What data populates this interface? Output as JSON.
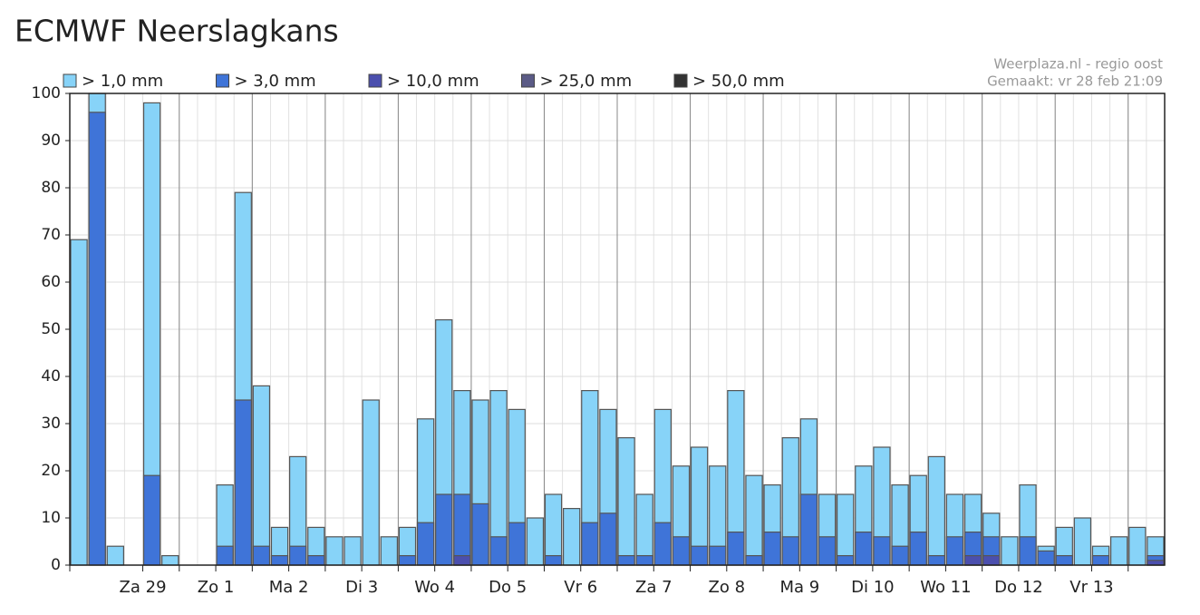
{
  "chart_data": {
    "type": "bar",
    "title": "ECMWF Neerslagkans",
    "credits": [
      "Weerplaza.nl - regio oost",
      "Gemaakt: vr 28 feb 21:09"
    ],
    "categories": [
      null,
      null,
      "Za 29",
      null,
      null,
      null,
      "Zo 1",
      null,
      null,
      null,
      "Ma 2",
      null,
      null,
      null,
      "Di 3",
      null,
      null,
      null,
      "Wo 4",
      null,
      null,
      null,
      "Do 5",
      null,
      null,
      null,
      "Vr 6",
      null,
      null,
      null,
      "Za 7",
      null,
      null,
      null,
      "Zo 8",
      null,
      null,
      null,
      "Ma 9",
      null,
      null,
      null,
      "Di 10",
      null,
      null,
      null,
      "Wo 11",
      null,
      null,
      null,
      "Do 12",
      null,
      null,
      null,
      "Vr 13",
      null,
      null,
      null,
      null,
      null
    ],
    "series": [
      {
        "name": "> 1,0 mm",
        "color": "#87d3f8",
        "values": [
          69,
          100,
          4,
          0,
          98,
          2,
          0,
          0,
          17,
          79,
          38,
          8,
          23,
          8,
          6,
          6,
          35,
          6,
          8,
          31,
          52,
          37,
          35,
          37,
          33,
          10,
          15,
          12,
          37,
          33,
          27,
          15,
          33,
          21,
          25,
          21,
          37,
          19,
          17,
          27,
          31,
          15,
          15,
          21,
          25,
          17,
          19,
          23,
          15,
          15,
          11,
          6,
          17,
          4,
          8,
          10,
          4,
          6,
          8,
          6
        ]
      },
      {
        "name": "> 3,0 mm",
        "color": "#3f74d8",
        "values": [
          0,
          96,
          0,
          0,
          19,
          0,
          0,
          0,
          4,
          35,
          4,
          2,
          4,
          2,
          0,
          0,
          0,
          0,
          2,
          9,
          15,
          15,
          13,
          6,
          9,
          0,
          2,
          0,
          9,
          11,
          2,
          2,
          9,
          6,
          4,
          4,
          7,
          2,
          7,
          6,
          15,
          6,
          2,
          7,
          6,
          4,
          7,
          2,
          6,
          7,
          6,
          0,
          6,
          3,
          2,
          0,
          2,
          0,
          0,
          2
        ]
      },
      {
        "name": "> 10,0 mm",
        "color": "#4b4fae",
        "values": [
          0,
          0,
          0,
          0,
          0,
          0,
          0,
          0,
          0,
          0,
          0,
          0,
          0,
          0,
          0,
          0,
          0,
          0,
          0,
          0,
          0,
          2,
          0,
          0,
          0,
          0,
          0,
          0,
          0,
          0,
          0,
          0,
          0,
          0,
          0,
          0,
          0,
          0,
          0,
          0,
          0,
          0,
          0,
          0,
          0,
          0,
          0,
          0,
          0,
          2,
          2,
          0,
          0,
          0,
          0,
          0,
          0,
          0,
          0,
          1
        ]
      },
      {
        "name": "> 25,0 mm",
        "color": "#5b5b86",
        "values": [
          0,
          0,
          0,
          0,
          0,
          0,
          0,
          0,
          0,
          0,
          0,
          0,
          0,
          0,
          0,
          0,
          0,
          0,
          0,
          0,
          0,
          0,
          0,
          0,
          0,
          0,
          0,
          0,
          0,
          0,
          0,
          0,
          0,
          0,
          0,
          0,
          0,
          0,
          0,
          0,
          0,
          0,
          0,
          0,
          0,
          0,
          0,
          0,
          0,
          0,
          0,
          0,
          0,
          0,
          0,
          0,
          0,
          0,
          0,
          0
        ]
      },
      {
        "name": "> 50,0 mm",
        "color": "#333333",
        "values": [
          0,
          0,
          0,
          0,
          0,
          0,
          0,
          0,
          0,
          0,
          0,
          0,
          0,
          0,
          0,
          0,
          0,
          0,
          0,
          0,
          0,
          0,
          0,
          0,
          0,
          0,
          0,
          0,
          0,
          0,
          0,
          0,
          0,
          0,
          0,
          0,
          0,
          0,
          0,
          0,
          0,
          0,
          0,
          0,
          0,
          0,
          0,
          0,
          0,
          0,
          0,
          0,
          0,
          0,
          0,
          0,
          0,
          0,
          0,
          0
        ]
      }
    ],
    "ylim": [
      0,
      100
    ],
    "yticks": [
      0,
      10,
      20,
      30,
      40,
      50,
      60,
      70,
      80,
      90,
      100
    ],
    "grid": true
  }
}
